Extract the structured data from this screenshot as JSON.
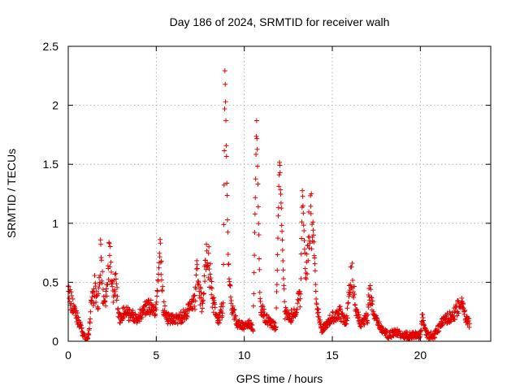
{
  "chart_data": {
    "type": "scatter",
    "title": "Day 186 of 2024, SRMTID for receiver walh",
    "xlabel": "GPS time / hours",
    "ylabel": "SRMTID / TECUs",
    "xlim": [
      0,
      24
    ],
    "ylim": [
      0,
      2.5
    ],
    "xticks": [
      0,
      5,
      10,
      15,
      20
    ],
    "xtick_labels": [
      "0",
      "5",
      "10",
      "15",
      "20"
    ],
    "yticks": [
      0,
      0.5,
      1,
      1.5,
      2,
      2.5
    ],
    "ytick_labels": [
      "0",
      "0.5",
      "1",
      "1.5",
      "2",
      "2.5"
    ],
    "grid": true,
    "marker": "plus",
    "color": "#e00000",
    "series": [
      {
        "name": "SRMTID",
        "anchors": [
          [
            0.0,
            0.45
          ],
          [
            0.05,
            0.38
          ],
          [
            1.0,
            0.0
          ],
          [
            1.1,
            0.02
          ],
          [
            1.2,
            0.1
          ],
          [
            1.3,
            0.3
          ],
          [
            1.5,
            0.45
          ],
          [
            1.7,
            0.35
          ],
          [
            1.85,
            0.78
          ],
          [
            2.0,
            0.3
          ],
          [
            2.2,
            0.45
          ],
          [
            2.35,
            0.75
          ],
          [
            2.5,
            0.4
          ],
          [
            2.7,
            0.5
          ],
          [
            2.9,
            0.18
          ],
          [
            3.2,
            0.25
          ],
          [
            3.6,
            0.22
          ],
          [
            4.0,
            0.2
          ],
          [
            4.4,
            0.3
          ],
          [
            4.7,
            0.28
          ],
          [
            5.0,
            0.25
          ],
          [
            5.2,
            0.78
          ],
          [
            5.4,
            0.3
          ],
          [
            5.6,
            0.2
          ],
          [
            6.0,
            0.18
          ],
          [
            6.4,
            0.2
          ],
          [
            6.8,
            0.25
          ],
          [
            7.2,
            0.35
          ],
          [
            7.3,
            0.55
          ],
          [
            7.6,
            0.3
          ],
          [
            7.9,
            0.78
          ],
          [
            8.2,
            0.35
          ],
          [
            8.5,
            0.15
          ],
          [
            8.8,
            0.3
          ],
          [
            8.9,
            2.3
          ],
          [
            9.1,
            0.6
          ],
          [
            9.3,
            0.3
          ],
          [
            9.6,
            0.15
          ],
          [
            10.0,
            0.12
          ],
          [
            10.3,
            0.15
          ],
          [
            10.5,
            0.1
          ],
          [
            10.7,
            1.9
          ],
          [
            10.9,
            0.3
          ],
          [
            11.2,
            0.2
          ],
          [
            11.5,
            0.15
          ],
          [
            11.8,
            0.12
          ],
          [
            12.0,
            1.55
          ],
          [
            12.3,
            0.25
          ],
          [
            12.6,
            0.2
          ],
          [
            12.9,
            0.25
          ],
          [
            13.2,
            0.4
          ],
          [
            13.3,
            1.3
          ],
          [
            13.5,
            0.5
          ],
          [
            13.7,
            1.0
          ],
          [
            13.9,
            1.02
          ],
          [
            14.1,
            0.3
          ],
          [
            14.4,
            0.1
          ],
          [
            14.7,
            0.15
          ],
          [
            15.0,
            0.2
          ],
          [
            15.4,
            0.25
          ],
          [
            15.8,
            0.15
          ],
          [
            16.1,
            0.6
          ],
          [
            16.3,
            0.3
          ],
          [
            16.6,
            0.15
          ],
          [
            17.0,
            0.2
          ],
          [
            17.1,
            0.42
          ],
          [
            17.4,
            0.2
          ],
          [
            17.8,
            0.1
          ],
          [
            18.2,
            0.05
          ],
          [
            18.6,
            0.08
          ],
          [
            19.0,
            0.05
          ],
          [
            19.5,
            0.05
          ],
          [
            20.0,
            0.05
          ],
          [
            20.1,
            0.2
          ],
          [
            20.4,
            0.05
          ],
          [
            20.8,
            0.05
          ],
          [
            21.2,
            0.15
          ],
          [
            21.6,
            0.2
          ],
          [
            22.0,
            0.25
          ],
          [
            22.3,
            0.35
          ],
          [
            22.6,
            0.18
          ],
          [
            22.8,
            0.15
          ]
        ]
      }
    ]
  }
}
